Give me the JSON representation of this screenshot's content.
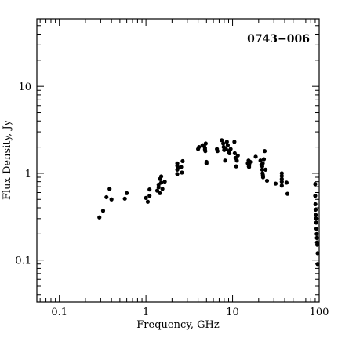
{
  "chart_data": {
    "type": "scatter",
    "title": "",
    "annotation": "0743−006",
    "xlabel": "Frequency, GHz",
    "ylabel": "Flux Density, Jy",
    "x_scale": "log",
    "y_scale": "log",
    "xlim": [
      0.055,
      100
    ],
    "ylim": [
      0.033,
      60
    ],
    "x_ticks": [
      {
        "value": 0.1,
        "label": "0.1"
      },
      {
        "value": 1,
        "label": "1"
      },
      {
        "value": 10,
        "label": "10"
      },
      {
        "value": 100,
        "label": "100"
      }
    ],
    "y_ticks": [
      {
        "value": 0.1,
        "label": "0.1"
      },
      {
        "value": 1,
        "label": "1"
      },
      {
        "value": 10,
        "label": "10"
      }
    ],
    "grid": false,
    "legend": "none",
    "marker_color": "#000000",
    "series": [
      {
        "points": [
          [
            0.29,
            0.31
          ],
          [
            0.32,
            0.37
          ],
          [
            0.35,
            0.53
          ],
          [
            0.38,
            0.66
          ],
          [
            0.4,
            0.5
          ],
          [
            0.57,
            0.51
          ],
          [
            0.6,
            0.59
          ],
          [
            1.0,
            0.52
          ],
          [
            1.05,
            0.47
          ],
          [
            1.1,
            0.65
          ],
          [
            1.1,
            0.55
          ],
          [
            1.35,
            0.63
          ],
          [
            1.4,
            0.74
          ],
          [
            1.4,
            0.69
          ],
          [
            1.45,
            0.86
          ],
          [
            1.45,
            0.59
          ],
          [
            1.5,
            0.92
          ],
          [
            1.5,
            0.78
          ],
          [
            1.55,
            0.66
          ],
          [
            1.65,
            0.8
          ],
          [
            2.3,
            1.3
          ],
          [
            2.3,
            1.22
          ],
          [
            2.3,
            1.1
          ],
          [
            2.3,
            0.98
          ],
          [
            2.35,
            1.15
          ],
          [
            2.55,
            1.18
          ],
          [
            2.6,
            1.02
          ],
          [
            2.65,
            1.38
          ],
          [
            4.0,
            1.9
          ],
          [
            4.1,
            2.0
          ],
          [
            4.5,
            2.1
          ],
          [
            4.7,
            2.05
          ],
          [
            4.8,
            1.95
          ],
          [
            4.8,
            1.88
          ],
          [
            4.85,
            1.8
          ],
          [
            4.9,
            2.2
          ],
          [
            5.0,
            1.3
          ],
          [
            5.0,
            1.35
          ],
          [
            6.6,
            1.9
          ],
          [
            6.7,
            1.8
          ],
          [
            7.5,
            2.4
          ],
          [
            7.8,
            2.2
          ],
          [
            7.9,
            2.0
          ],
          [
            8.0,
            1.85
          ],
          [
            8.1,
            1.95
          ],
          [
            8.2,
            1.4
          ],
          [
            8.4,
            1.9
          ],
          [
            8.6,
            2.3
          ],
          [
            8.8,
            2.1
          ],
          [
            9.0,
            1.8
          ],
          [
            9.2,
            1.7
          ],
          [
            9.5,
            1.9
          ],
          [
            10.5,
            2.3
          ],
          [
            10.6,
            1.7
          ],
          [
            10.8,
            1.5
          ],
          [
            11.0,
            1.2
          ],
          [
            11.2,
            1.4
          ],
          [
            11.5,
            1.6
          ],
          [
            15.0,
            1.3
          ],
          [
            15.3,
            1.4
          ],
          [
            15.4,
            1.2
          ],
          [
            15.5,
            1.18
          ],
          [
            15.6,
            1.25
          ],
          [
            16.0,
            1.35
          ],
          [
            18.5,
            1.55
          ],
          [
            21.0,
            1.4
          ],
          [
            21.5,
            1.25
          ],
          [
            22.0,
            1.1
          ],
          [
            22.0,
            1.2
          ],
          [
            22.2,
            1.0
          ],
          [
            22.3,
            1.3
          ],
          [
            22.4,
            0.95
          ],
          [
            22.5,
            0.9
          ],
          [
            23.0,
            1.45
          ],
          [
            23.5,
            1.8
          ],
          [
            24.0,
            1.1
          ],
          [
            25.0,
            0.82
          ],
          [
            31.4,
            0.76
          ],
          [
            37.0,
            0.8
          ],
          [
            37.0,
            0.86
          ],
          [
            37.0,
            0.93
          ],
          [
            37.0,
            1.0
          ],
          [
            37.0,
            0.72
          ],
          [
            42.0,
            0.78
          ],
          [
            43.0,
            0.58
          ],
          [
            90.0,
            0.75
          ],
          [
            90.0,
            0.55
          ],
          [
            90.5,
            0.44
          ],
          [
            91.0,
            0.38
          ],
          [
            91.5,
            0.33
          ],
          [
            92.0,
            0.3
          ],
          [
            92.5,
            0.27
          ],
          [
            93.0,
            0.23
          ],
          [
            93.5,
            0.2
          ],
          [
            94.0,
            0.18
          ],
          [
            94.5,
            0.16
          ],
          [
            95.0,
            0.15
          ],
          [
            96.0,
            0.12
          ],
          [
            97.0,
            0.09
          ]
        ]
      }
    ]
  }
}
